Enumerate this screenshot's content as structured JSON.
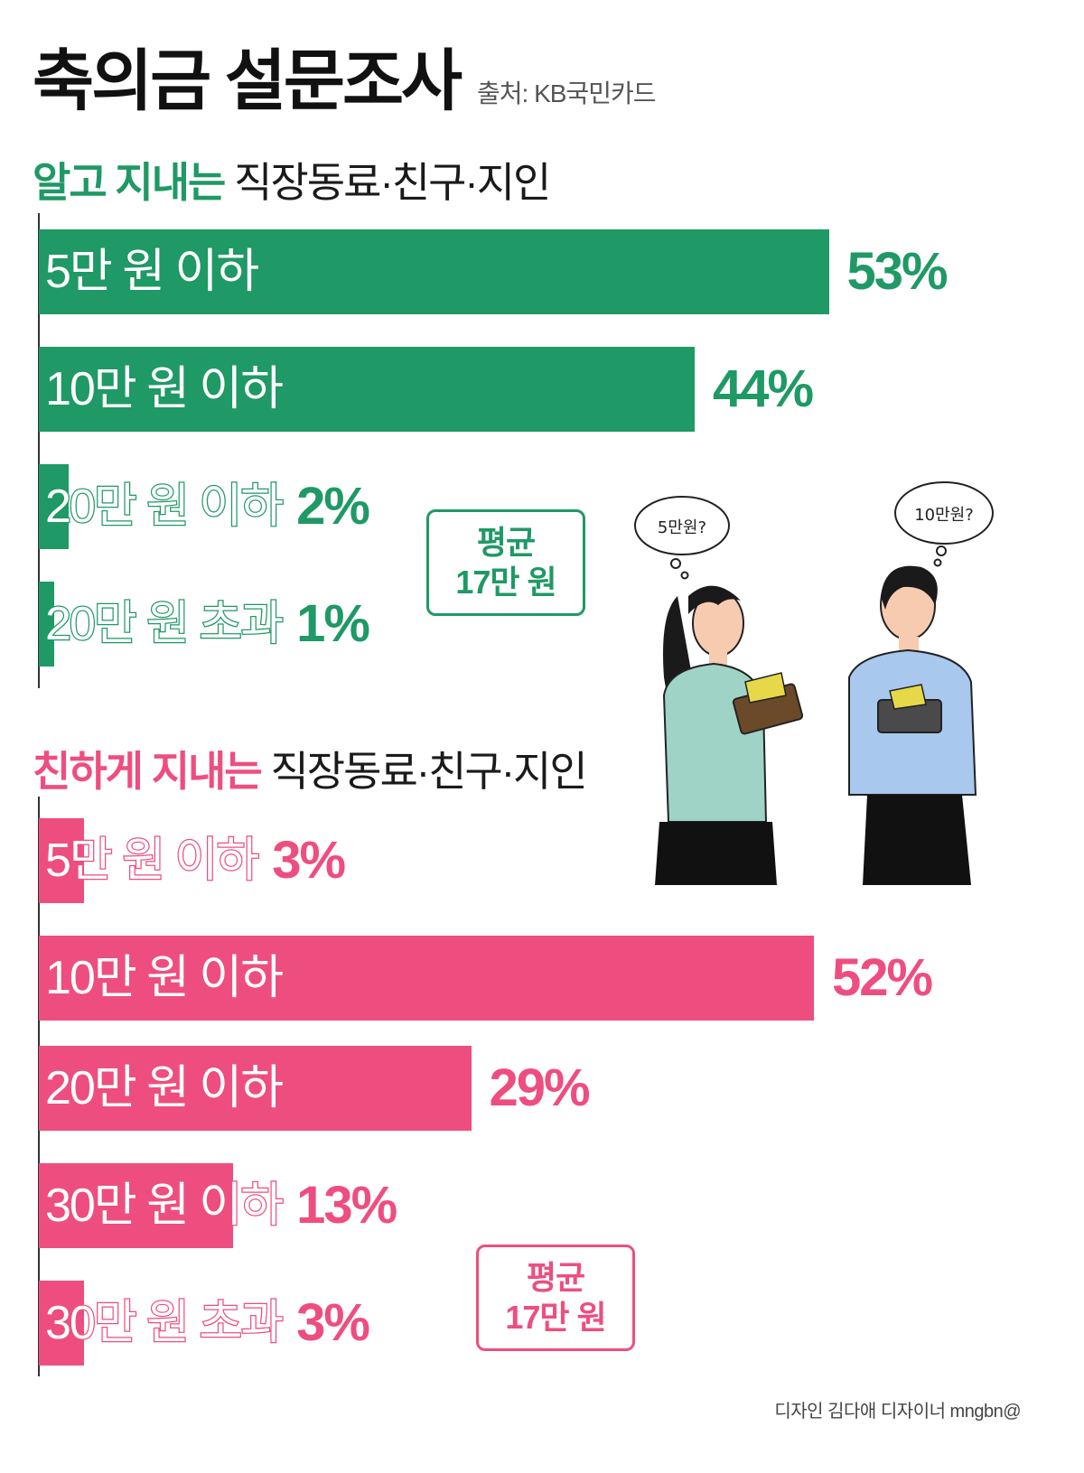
{
  "title": "축의금 설문조사",
  "source": "출처: KB국민카드",
  "colors": {
    "green": "#1f9965",
    "pink": "#ee4e7f"
  },
  "sections": [
    {
      "heading_highlight": "알고 지내는",
      "heading_rest": " 직장동료·친구·지인",
      "average_label": "평균",
      "average_value": "17만 원"
    },
    {
      "heading_highlight": "친하게 지내는",
      "heading_rest": " 직장동료·친구·지인",
      "average_label": "평균",
      "average_value": "17만 원"
    }
  ],
  "illustration": {
    "bubble_left": "5만원?",
    "bubble_right": "10만원?"
  },
  "credit": "디자인 김다애 디자이너 mngbn@",
  "chart_data": [
    {
      "type": "bar",
      "orientation": "horizontal",
      "categories": [
        "5만 원 이하",
        "10만 원 이하",
        "20만 원 이하",
        "20만 원 초과"
      ],
      "values": [
        53,
        44,
        2,
        1
      ],
      "value_labels": [
        "53%",
        "44%",
        "2%",
        "1%"
      ],
      "unit": "%",
      "xlim": [
        0,
        100
      ],
      "color": "#1f9965"
    },
    {
      "type": "bar",
      "orientation": "horizontal",
      "categories": [
        "5만 원 이하",
        "10만 원 이하",
        "20만 원 이하",
        "30만 원 이하",
        "30만 원 초과"
      ],
      "values": [
        3,
        52,
        29,
        13,
        3
      ],
      "value_labels": [
        "3%",
        "52%",
        "29%",
        "13%",
        "3%"
      ],
      "unit": "%",
      "xlim": [
        0,
        100
      ],
      "color": "#ee4e7f"
    }
  ]
}
